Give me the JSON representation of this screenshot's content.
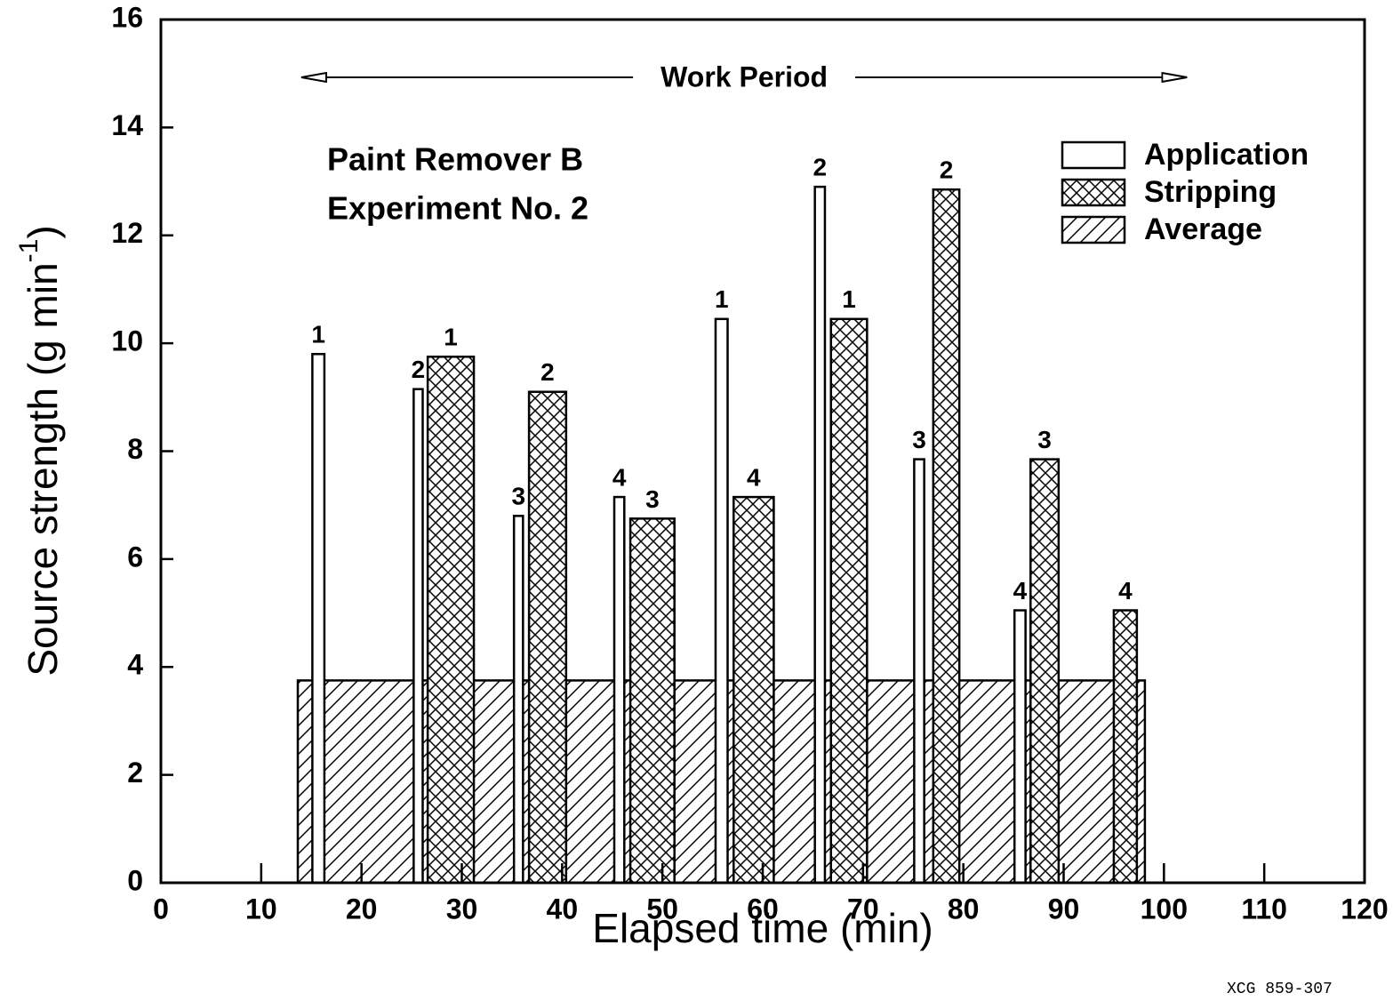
{
  "chart_data": {
    "type": "bar",
    "xlabel": "Elapsed time (min)",
    "ylabel": "Source strength (g min",
    "ylabel_sup": "-1",
    "ylabel_end": ")",
    "annotations": [
      "Paint Remover B",
      "Experiment No. 2"
    ],
    "work_period": {
      "label": "Work Period",
      "start": 14,
      "end": 102.3
    },
    "footnote": "XCG 859-307",
    "xlim": [
      0,
      120
    ],
    "xticks": [
      0,
      10,
      20,
      30,
      40,
      50,
      60,
      70,
      80,
      90,
      100,
      110,
      120
    ],
    "ylim": [
      0,
      16
    ],
    "yticks": [
      0,
      2,
      4,
      6,
      8,
      10,
      12,
      14,
      16
    ],
    "legend": "upper right",
    "series": [
      {
        "name": "Average",
        "color": "#000000",
        "pattern": "diagonal",
        "x_start": [
          13.65
        ],
        "x_end": [
          98.1
        ],
        "values": [
          3.75
        ]
      },
      {
        "name": "Application",
        "color": "#000000",
        "pattern": "none",
        "x_start": [
          15.1,
          25.2,
          35.2,
          45.2,
          55.3,
          65.2,
          75.1,
          85.1
        ],
        "x_end": [
          16.3,
          26.1,
          36.1,
          46.2,
          56.5,
          66.2,
          76.1,
          86.2
        ],
        "values": [
          9.8,
          9.15,
          6.8,
          7.15,
          10.45,
          12.9,
          7.85,
          5.05
        ],
        "bar_labels": [
          "1",
          "2",
          "3",
          "4",
          "1",
          "2",
          "3",
          "4"
        ]
      },
      {
        "name": "Stripping",
        "color": "#000000",
        "pattern": "crosshatch",
        "x_start": [
          26.6,
          36.7,
          46.8,
          57.1,
          66.8,
          77.0,
          86.7,
          95.0
        ],
        "x_end": [
          31.2,
          40.4,
          51.2,
          61.1,
          70.4,
          79.6,
          89.5,
          97.3
        ],
        "values": [
          9.75,
          9.1,
          6.75,
          7.15,
          10.45,
          12.85,
          7.85,
          5.05
        ],
        "bar_labels": [
          "1",
          "2",
          "3",
          "4",
          "1",
          "2",
          "3",
          "4"
        ]
      }
    ],
    "legend_order": [
      1,
      2,
      0
    ]
  }
}
